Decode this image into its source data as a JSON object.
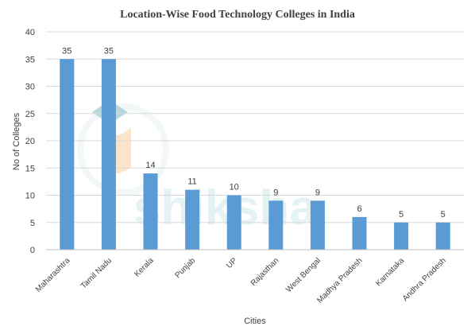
{
  "chart_data": {
    "type": "bar",
    "title": "Location-Wise Food Technology Colleges in India",
    "xlabel": "Cities",
    "ylabel": "No of Colleges",
    "categories": [
      "Maharashtra",
      "Tamil Nadu",
      "Kerala",
      "Punjab",
      "UP",
      "Rajasthan",
      "West Bengal",
      "Madhya Pradesh",
      "Karnataka",
      "Andhra Pradesh"
    ],
    "values": [
      35,
      35,
      14,
      11,
      10,
      9,
      9,
      6,
      5,
      5
    ],
    "ylim": [
      0,
      40
    ],
    "yticks": [
      0,
      5,
      10,
      15,
      20,
      25,
      30,
      35,
      40
    ],
    "grid": true,
    "legend": "none",
    "colors": {
      "bar": "#5b9bd5",
      "grid": "#d9d9d9",
      "text": "#404040",
      "title": "#404040",
      "watermark": "#cfe8ec"
    }
  },
  "watermark": {
    "text": "shiksha",
    "icon": "graduation-cap-icon"
  }
}
